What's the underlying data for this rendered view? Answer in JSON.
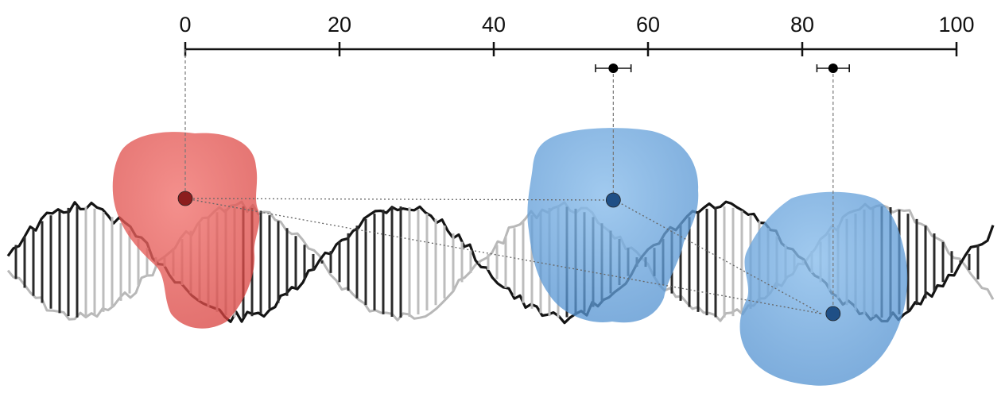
{
  "axis": {
    "range": [
      0,
      100
    ],
    "ticks": [
      {
        "value": 0,
        "label": "0"
      },
      {
        "value": 20,
        "label": "20"
      },
      {
        "value": 40,
        "label": "40"
      },
      {
        "value": 60,
        "label": "60"
      },
      {
        "value": 80,
        "label": "80"
      },
      {
        "value": 100,
        "label": "100"
      }
    ]
  },
  "markers": [
    {
      "id": "red-site",
      "value": 0,
      "error": 0,
      "shown_on_axis": false
    },
    {
      "id": "blue-site-1",
      "value": 55.5,
      "error": 2.3,
      "shown_on_axis": true
    },
    {
      "id": "blue-site-2",
      "value": 84,
      "error": 2.1,
      "shown_on_axis": true
    }
  ],
  "colors": {
    "red_blob": "#e8534f",
    "blue_blob": "#6aa6df",
    "dark_strand": "#141414",
    "light_strand": "#b8b8b8",
    "axis": "#111111",
    "red_dot": "#8c1d1d",
    "blue_dot": "#1f4f86"
  }
}
